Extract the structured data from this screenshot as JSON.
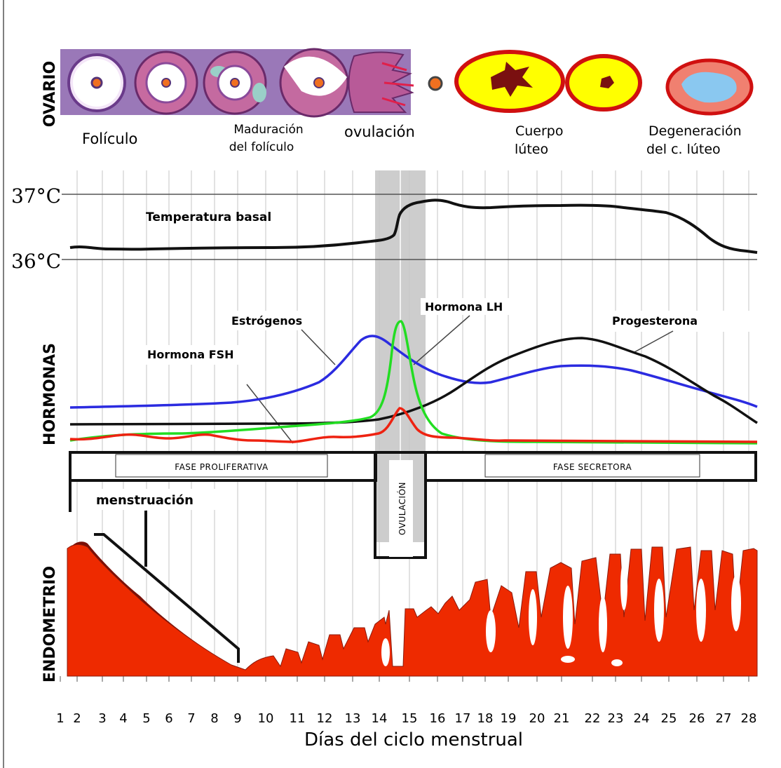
{
  "sections": {
    "ovario": "OVARIO",
    "hormonas": "HORMONAS",
    "endometrio": "ENDOMETRIO"
  },
  "ovary_labels": {
    "foliculo": "Folículo",
    "maduracion_1": "Maduración",
    "maduracion_2": "del folículo",
    "ovulacion": "ovulación",
    "cuerpo_1": "Cuerpo",
    "cuerpo_2": "lúteo",
    "degeneracion_1": "Degeneración",
    "degeneracion_2": "del c. lúteo"
  },
  "temperature": {
    "tick_high": "37°C",
    "tick_low": "36°C",
    "label": "Temperatura basal"
  },
  "hormones": {
    "estrogenos": "Estrógenos",
    "lh": "Hormona LH",
    "progesterona": "Progesterona",
    "fsh": "Hormona FSH"
  },
  "phases": {
    "proliferativa": "FASE PROLIFERATIVA",
    "secretora": "FASE SECRETORA",
    "ovulacion": "OVULACIÓN",
    "menstruacion": "menstruación"
  },
  "x_axis": {
    "title": "Días del ciclo menstrual",
    "ticks": [
      "1",
      "2",
      "3",
      "4",
      "5",
      "6",
      "7",
      "8",
      "9",
      "10",
      "11",
      "12",
      "13",
      "14",
      "15",
      "16",
      "17",
      "18",
      "19",
      "20",
      "21",
      "22",
      "23",
      "24",
      "25",
      "26",
      "27",
      "28"
    ]
  },
  "colors": {
    "estrogen": "#2b2be0",
    "lh": "#22dd22",
    "fsh": "#ee2211",
    "progesterone": "#111111",
    "endometrium": "#ee2a00",
    "ovulation_band": "#c8c8c8"
  }
}
